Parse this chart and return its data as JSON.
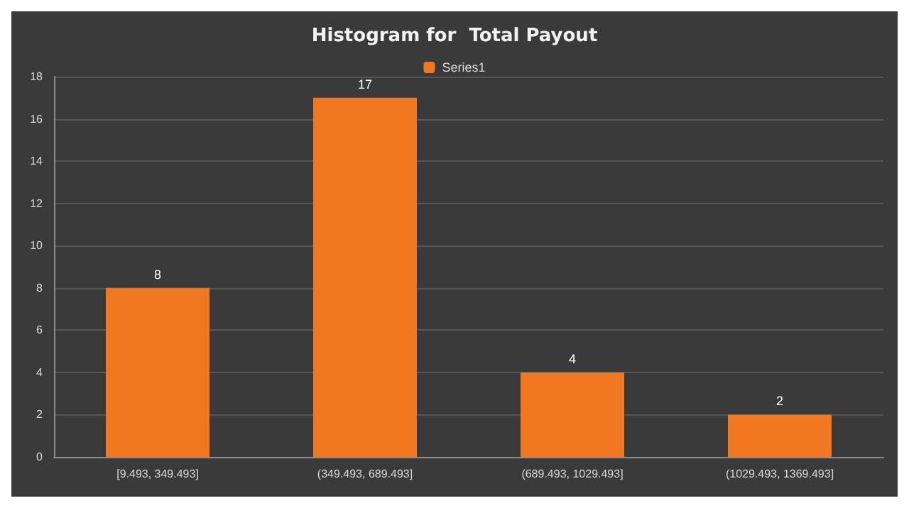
{
  "chart_data": {
    "type": "bar",
    "title": "Histogram for  Total Payout",
    "categories": [
      "[9.493, 349.493]",
      "(349.493, 689.493]",
      "(689.493, 1029.493]",
      "(1029.493, 1369.493]"
    ],
    "series": [
      {
        "name": "Series1",
        "color": "#f07820",
        "values": [
          8,
          17,
          4,
          2
        ]
      }
    ],
    "ylim": [
      0,
      18
    ],
    "yticks": [
      0,
      2,
      4,
      6,
      8,
      10,
      12,
      14,
      16,
      18
    ],
    "grid": "y",
    "legend": "top",
    "data_labels": true
  }
}
